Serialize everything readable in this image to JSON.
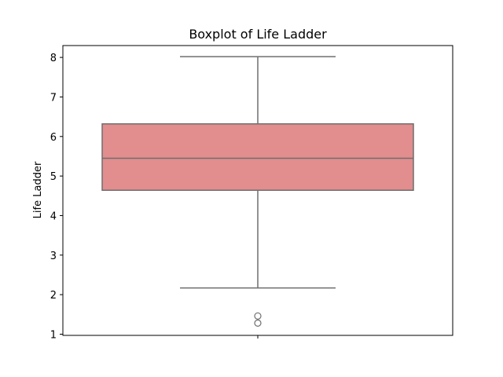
{
  "chart_data": {
    "type": "boxplot",
    "title": "Boxplot of Life Ladder",
    "xlabel": "",
    "ylabel": "Life Ladder",
    "ylim": [
      0.97,
      8.3
    ],
    "yticks": [
      1,
      2,
      3,
      4,
      5,
      6,
      7,
      8
    ],
    "box": {
      "whisker_low": 2.17,
      "q1": 4.64,
      "median": 5.45,
      "q3": 6.32,
      "whisker_high": 8.02,
      "outliers": [
        1.46,
        1.28
      ]
    },
    "colors": {
      "box_fill": "#e28d8e",
      "line": "#6e6e6e",
      "frame": "#000000"
    },
    "grid": false
  }
}
